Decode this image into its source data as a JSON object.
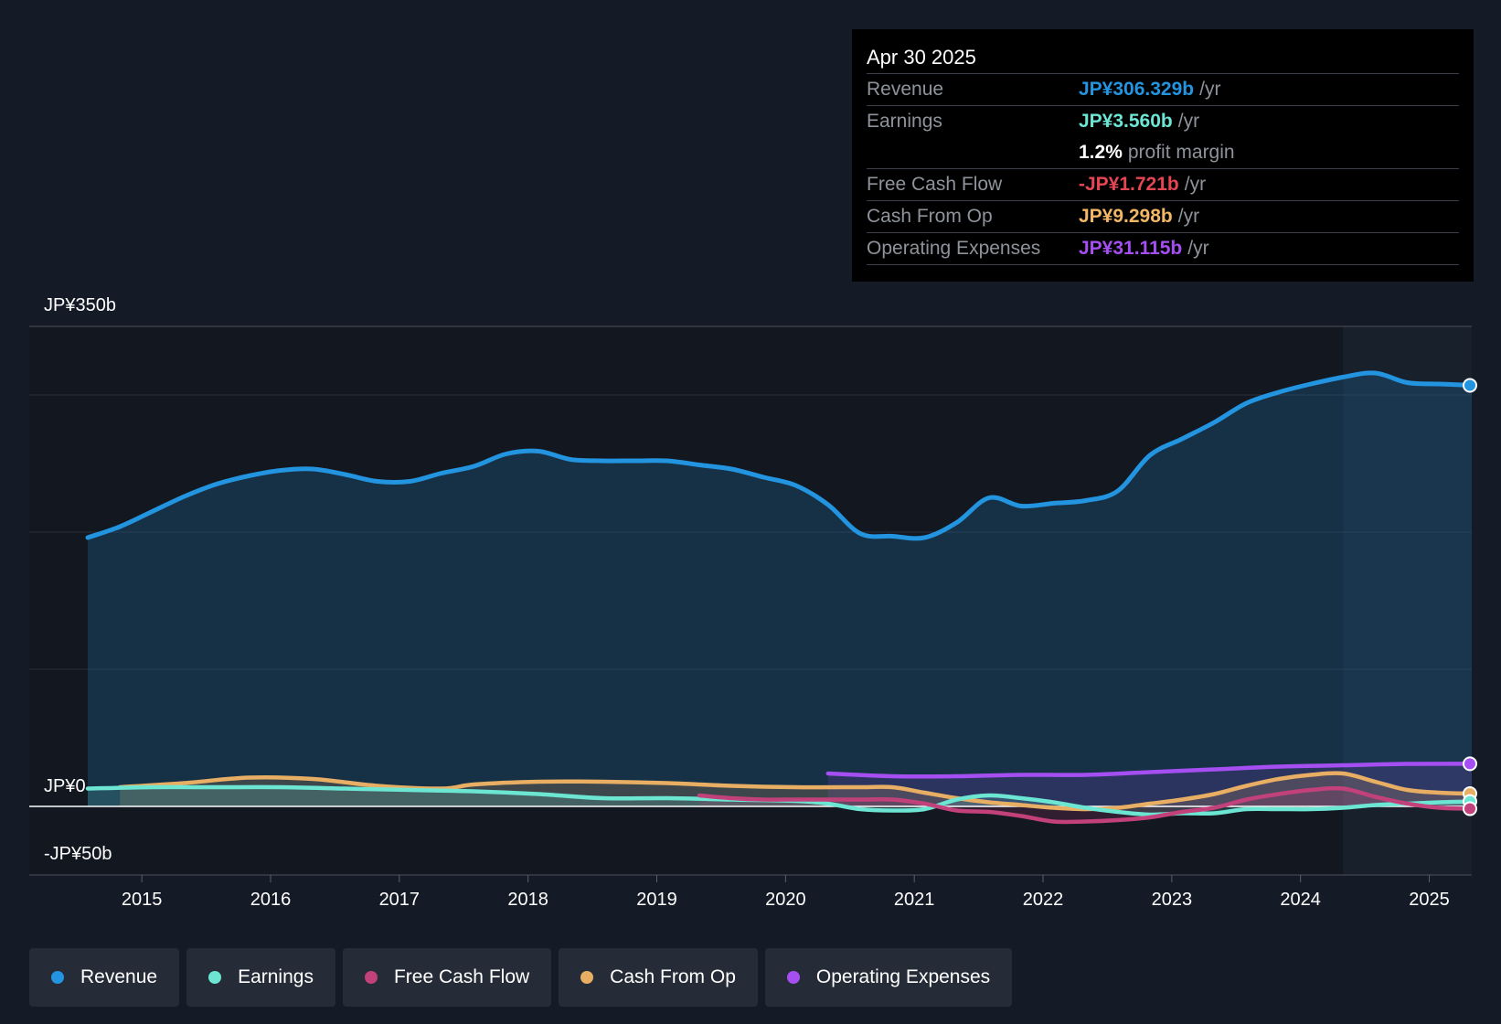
{
  "tooltip": {
    "date": "Apr 30 2025",
    "rows": [
      {
        "label": "Revenue",
        "value": "JP¥306.329b",
        "unit": "/yr",
        "color": "#2394df"
      },
      {
        "label": "Earnings",
        "value": "JP¥3.560b",
        "unit": "/yr",
        "color": "#6ce5d2"
      },
      {
        "label": "",
        "value": "1.2%",
        "unit": "profit margin",
        "color": "#ffffff"
      },
      {
        "label": "Free Cash Flow",
        "value": "-JP¥1.721b",
        "unit": "/yr",
        "color": "#e64553"
      },
      {
        "label": "Cash From Op",
        "value": "JP¥9.298b",
        "unit": "/yr",
        "color": "#f2b766"
      },
      {
        "label": "Operating Expenses",
        "value": "JP¥31.115b",
        "unit": "/yr",
        "color": "#a54ff2"
      }
    ]
  },
  "legend": [
    {
      "label": "Revenue",
      "color": "#2394df"
    },
    {
      "label": "Earnings",
      "color": "#6ce5d2"
    },
    {
      "label": "Free Cash Flow",
      "color": "#c2417b"
    },
    {
      "label": "Cash From Op",
      "color": "#e8ae63"
    },
    {
      "label": "Operating Expenses",
      "color": "#a54ff2"
    }
  ],
  "chart_data": {
    "type": "line",
    "title": "",
    "ylabel_top": "JP¥350b",
    "ylabel_zero": "JP¥0",
    "ylabel_bottom": "-JP¥50b",
    "ylim": [
      -50,
      350
    ],
    "xlim": [
      2014.58,
      2025.33
    ],
    "x_ticks": [
      "2015",
      "2016",
      "2017",
      "2018",
      "2019",
      "2020",
      "2021",
      "2022",
      "2023",
      "2024",
      "2025"
    ],
    "x_tick_values": [
      2015,
      2016,
      2017,
      2018,
      2019,
      2020,
      2021,
      2022,
      2023,
      2024,
      2025
    ],
    "highlight_from": 2024.33,
    "series": [
      {
        "name": "Revenue",
        "color": "#2394df",
        "x": [
          2014.58,
          2014.83,
          2015.08,
          2015.33,
          2015.58,
          2015.83,
          2016.08,
          2016.33,
          2016.58,
          2016.83,
          2017.08,
          2017.33,
          2017.58,
          2017.83,
          2018.08,
          2018.33,
          2018.58,
          2018.83,
          2019.08,
          2019.33,
          2019.58,
          2019.83,
          2020.08,
          2020.33,
          2020.58,
          2020.83,
          2021.08,
          2021.33,
          2021.58,
          2021.83,
          2022.08,
          2022.33,
          2022.58,
          2022.83,
          2023.08,
          2023.33,
          2023.58,
          2023.83,
          2024.08,
          2024.33,
          2024.58,
          2024.83,
          2025.08,
          2025.33
        ],
        "values": [
          196,
          204,
          215,
          226,
          235,
          241,
          245,
          246,
          242,
          237,
          237,
          243,
          248,
          257,
          259,
          253,
          252,
          252,
          252,
          249,
          246,
          240,
          234,
          220,
          199,
          197,
          196,
          207,
          225,
          219,
          221,
          223,
          230,
          256,
          268,
          280,
          294,
          302,
          308,
          313,
          316,
          309,
          308,
          307
        ]
      },
      {
        "name": "Earnings",
        "color": "#6ce5d2",
        "x": [
          2014.58,
          2015.08,
          2015.58,
          2016.08,
          2016.58,
          2017.08,
          2017.58,
          2018.08,
          2018.58,
          2019.08,
          2019.58,
          2020.08,
          2020.33,
          2020.58,
          2020.83,
          2021.08,
          2021.33,
          2021.58,
          2021.83,
          2022.08,
          2022.33,
          2022.58,
          2022.83,
          2023.08,
          2023.33,
          2023.58,
          2023.83,
          2024.08,
          2024.33,
          2024.58,
          2024.83,
          2025.08,
          2025.33
        ],
        "values": [
          13,
          14,
          14,
          14,
          13,
          12,
          11,
          9,
          6,
          6,
          5,
          4,
          2,
          -2,
          -3,
          -2,
          5,
          8,
          6,
          3,
          -1,
          -4,
          -6,
          -5,
          -5,
          -2,
          -2,
          -2,
          -1,
          1,
          2,
          3,
          3.6
        ]
      },
      {
        "name": "Free Cash Flow",
        "color": "#c2417b",
        "x": [
          2019.33,
          2019.58,
          2019.83,
          2020.08,
          2020.33,
          2020.58,
          2020.83,
          2021.08,
          2021.33,
          2021.58,
          2021.83,
          2022.08,
          2022.33,
          2022.58,
          2022.83,
          2023.08,
          2023.33,
          2023.58,
          2023.83,
          2024.08,
          2024.33,
          2024.58,
          2024.83,
          2025.08,
          2025.33
        ],
        "values": [
          8,
          6,
          5,
          5,
          5,
          5,
          5,
          2,
          -3,
          -4,
          -7,
          -11,
          -11,
          -10,
          -8,
          -4,
          -1,
          5,
          9,
          12,
          13,
          7,
          2,
          -1,
          -1.7
        ]
      },
      {
        "name": "Cash From Op",
        "color": "#e8ae63",
        "x": [
          2014.83,
          2015.33,
          2015.83,
          2016.33,
          2016.83,
          2017.33,
          2017.58,
          2018.08,
          2018.58,
          2019.08,
          2019.58,
          2020.08,
          2020.58,
          2020.83,
          2021.08,
          2021.33,
          2021.58,
          2021.83,
          2022.08,
          2022.33,
          2022.58,
          2022.83,
          2023.08,
          2023.33,
          2023.58,
          2023.83,
          2024.08,
          2024.33,
          2024.58,
          2024.83,
          2025.08,
          2025.33
        ],
        "values": [
          14,
          17,
          21,
          20,
          15,
          13,
          16,
          18,
          18,
          17,
          15,
          14,
          14,
          14,
          10,
          6,
          3,
          1,
          -1,
          -2,
          -1,
          2,
          5,
          9,
          15,
          20,
          23,
          24,
          18,
          12,
          10,
          9.3
        ]
      },
      {
        "name": "Operating Expenses",
        "color": "#a54ff2",
        "x": [
          2020.33,
          2020.83,
          2021.33,
          2021.83,
          2022.33,
          2022.83,
          2023.33,
          2023.83,
          2024.33,
          2024.83,
          2025.33
        ],
        "values": [
          24,
          22,
          22,
          23,
          23,
          25,
          27,
          29,
          30,
          31,
          31.1
        ]
      }
    ]
  }
}
